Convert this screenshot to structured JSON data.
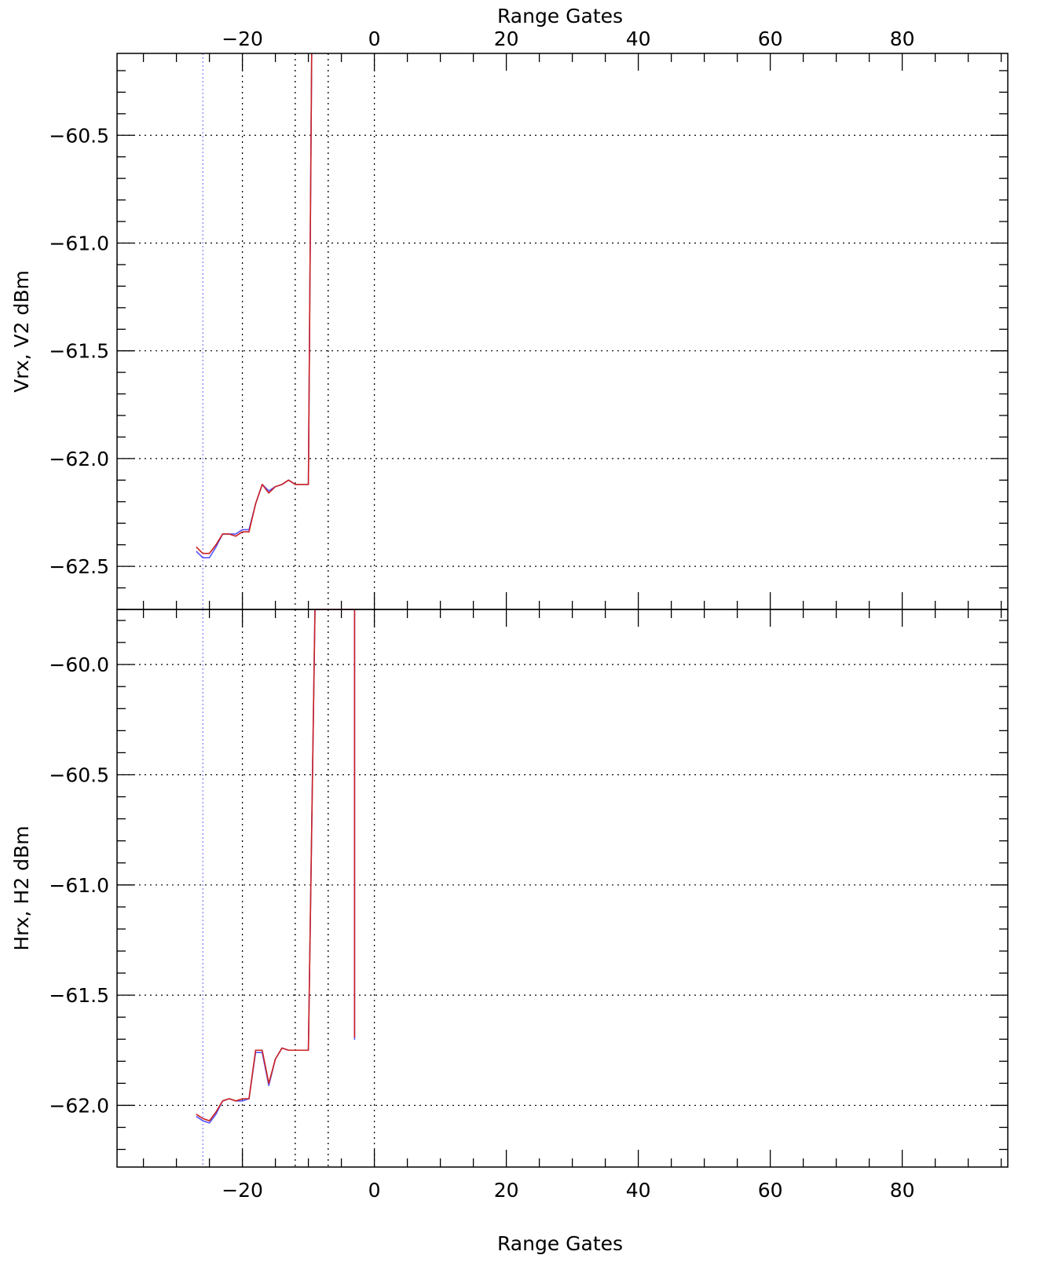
{
  "chart_data": [
    {
      "type": "line",
      "ylabel": "Vrx, V2 dBm",
      "x2label": "Range Gates",
      "xlim": [
        -39,
        96
      ],
      "ylim": [
        -62.7,
        -60.12
      ],
      "xticks": [
        -20,
        0,
        20,
        40,
        60,
        80
      ],
      "yticks": [
        -62.5,
        -62.0,
        -61.5,
        -61.0,
        -60.5
      ],
      "ytick_labels": [
        "-62.5",
        "-62.0",
        "-61.5",
        "-61.0",
        "-60.5"
      ],
      "grid": true,
      "reference_lines_x": [
        -26,
        -20,
        -12,
        -7,
        0
      ],
      "series": [
        {
          "color": "#5555ff",
          "x": [
            -27,
            -26,
            -25,
            -24,
            -23,
            -22,
            -21,
            -20,
            -19,
            -18,
            -17,
            -16,
            -15,
            -14,
            -13,
            -12,
            -11,
            -10,
            -9.5
          ],
          "y": [
            -62.43,
            -62.46,
            -62.46,
            -62.41,
            -62.35,
            -62.35,
            -62.35,
            -62.33,
            -62.33,
            -62.21,
            -62.12,
            -62.15,
            -62.13,
            -62.12,
            -62.1,
            -62.12,
            -62.12,
            -62.12,
            -60.12
          ]
        },
        {
          "color": "#cc2222",
          "x": [
            -27,
            -26,
            -25,
            -24,
            -23,
            -22,
            -21,
            -20,
            -19,
            -18,
            -17,
            -16,
            -15,
            -14,
            -13,
            -12,
            -11,
            -10,
            -9.5
          ],
          "y": [
            -62.41,
            -62.44,
            -62.44,
            -62.4,
            -62.35,
            -62.35,
            -62.36,
            -62.34,
            -62.34,
            -62.21,
            -62.12,
            -62.16,
            -62.13,
            -62.12,
            -62.1,
            -62.12,
            -62.12,
            -62.12,
            -60.12
          ]
        }
      ]
    },
    {
      "type": "line",
      "ylabel": "Hrx, H2 dBm",
      "xlabel": "Range Gates",
      "xlim": [
        -39,
        96
      ],
      "ylim": [
        -62.28,
        -59.75
      ],
      "xticks": [
        -20,
        0,
        20,
        40,
        60,
        80
      ],
      "yticks": [
        -62.0,
        -61.5,
        -61.0,
        -60.5,
        -60.0
      ],
      "ytick_labels": [
        "-62.0",
        "-61.5",
        "-61.0",
        "-60.5",
        "-60.0"
      ],
      "grid": true,
      "reference_lines_x": [
        -26,
        -20,
        -12,
        -7,
        0
      ],
      "series": [
        {
          "color": "#5555ff",
          "x": [
            -27,
            -26,
            -25,
            -24,
            -23,
            -22,
            -21,
            -20,
            -19,
            -18,
            -17,
            -16,
            -15,
            -14,
            -13,
            -12,
            -11,
            -10,
            -9,
            -4,
            -3,
            -3,
            -3
          ],
          "y": [
            -62.05,
            -62.07,
            -62.08,
            -62.04,
            -61.98,
            -61.97,
            -61.98,
            -61.98,
            -61.97,
            -61.76,
            -61.76,
            -61.91,
            -61.79,
            -61.74,
            -61.75,
            -61.75,
            -61.75,
            -61.75,
            -59.75,
            -59.75,
            -59.75,
            -61.7,
            -59.75
          ]
        },
        {
          "color": "#cc2222",
          "x": [
            -27,
            -26,
            -25,
            -24,
            -23,
            -22,
            -21,
            -20,
            -19,
            -18,
            -17,
            -16,
            -15,
            -14,
            -13,
            -12,
            -11,
            -10,
            -9,
            -4,
            -3,
            -3,
            -3
          ],
          "y": [
            -62.04,
            -62.06,
            -62.07,
            -62.03,
            -61.98,
            -61.97,
            -61.98,
            -61.97,
            -61.97,
            -61.75,
            -61.75,
            -61.9,
            -61.79,
            -61.74,
            -61.75,
            -61.75,
            -61.75,
            -61.75,
            -59.75,
            -59.75,
            -59.75,
            -61.69,
            -59.75
          ]
        }
      ]
    }
  ]
}
